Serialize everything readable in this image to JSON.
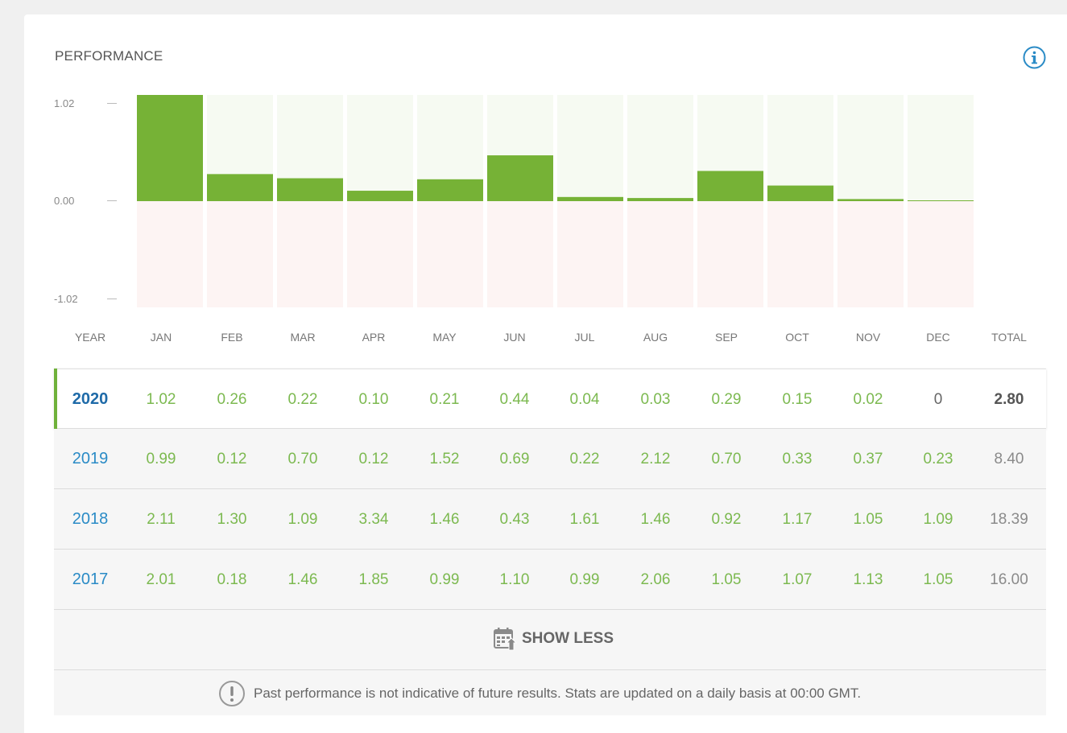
{
  "title": "PERFORMANCE",
  "icons": {
    "info": "info-icon",
    "show_less": "calendar-arrow-icon",
    "notice": "exclamation-circle-icon"
  },
  "colors": {
    "positive": "#76b236",
    "positive_bg": "#f6faf2",
    "negative_bg": "#fdf4f3",
    "year": "#2a8bc6",
    "value": "#7cb950",
    "accent_bar": "#6fb13a"
  },
  "chart_data": {
    "type": "bar",
    "categories": [
      "JAN",
      "FEB",
      "MAR",
      "APR",
      "MAY",
      "JUN",
      "JUL",
      "AUG",
      "SEP",
      "OCT",
      "NOV",
      "DEC"
    ],
    "values": [
      1.02,
      0.26,
      0.22,
      0.1,
      0.21,
      0.44,
      0.04,
      0.03,
      0.29,
      0.15,
      0.02,
      0
    ],
    "ylim": [
      -1.02,
      1.02
    ],
    "yticks": [
      "1.02",
      "0.00",
      "-1.02"
    ]
  },
  "table": {
    "headers": [
      "YEAR",
      "JAN",
      "FEB",
      "MAR",
      "APR",
      "MAY",
      "JUN",
      "JUL",
      "AUG",
      "SEP",
      "OCT",
      "NOV",
      "DEC",
      "TOTAL"
    ],
    "rows": [
      {
        "year": "2020",
        "values": [
          "1.02",
          "0.26",
          "0.22",
          "0.10",
          "0.21",
          "0.44",
          "0.04",
          "0.03",
          "0.29",
          "0.15",
          "0.02",
          "0"
        ],
        "total": "2.80",
        "active": true
      },
      {
        "year": "2019",
        "values": [
          "0.99",
          "0.12",
          "0.70",
          "0.12",
          "1.52",
          "0.69",
          "0.22",
          "2.12",
          "0.70",
          "0.33",
          "0.37",
          "0.23"
        ],
        "total": "8.40",
        "active": false
      },
      {
        "year": "2018",
        "values": [
          "2.11",
          "1.30",
          "1.09",
          "3.34",
          "1.46",
          "0.43",
          "1.61",
          "1.46",
          "0.92",
          "1.17",
          "1.05",
          "1.09"
        ],
        "total": "18.39",
        "active": false
      },
      {
        "year": "2017",
        "values": [
          "2.01",
          "0.18",
          "1.46",
          "1.85",
          "0.99",
          "1.10",
          "0.99",
          "2.06",
          "1.05",
          "1.07",
          "1.13",
          "1.05"
        ],
        "total": "16.00",
        "active": false
      }
    ]
  },
  "show_less_label": "SHOW LESS",
  "footer_text": "Past performance is not indicative of future results. Stats are updated on a daily basis at 00:00 GMT."
}
